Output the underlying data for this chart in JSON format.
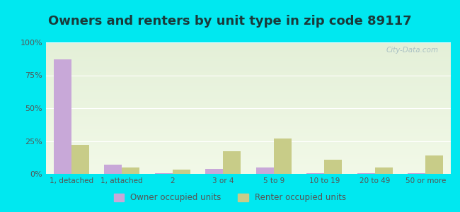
{
  "title": "Owners and renters by unit type in zip code 89117",
  "categories": [
    "1, detached",
    "1, attached",
    "2",
    "3 or 4",
    "5 to 9",
    "10 to 19",
    "20 to 49",
    "50 or more"
  ],
  "owner_values": [
    87,
    7,
    0.5,
    4,
    5,
    0.3,
    0.5,
    0.5
  ],
  "renter_values": [
    22,
    5,
    3,
    17,
    27,
    11,
    5,
    14
  ],
  "owner_color": "#c8a8d8",
  "renter_color": "#c8cc88",
  "background_color": "#00e8f0",
  "ylabel_ticks": [
    "0%",
    "25%",
    "50%",
    "75%",
    "100%"
  ],
  "ytick_values": [
    0,
    25,
    50,
    75,
    100
  ],
  "ylim": [
    0,
    100
  ],
  "title_fontsize": 13,
  "title_color": "#1a3a3a",
  "tick_color": "#555555",
  "legend_labels": [
    "Owner occupied units",
    "Renter occupied units"
  ],
  "watermark": "City-Data.com",
  "plot_bg_colors": [
    "#e4f0d8",
    "#f2f9e8"
  ],
  "grid_color": "#ffffff"
}
